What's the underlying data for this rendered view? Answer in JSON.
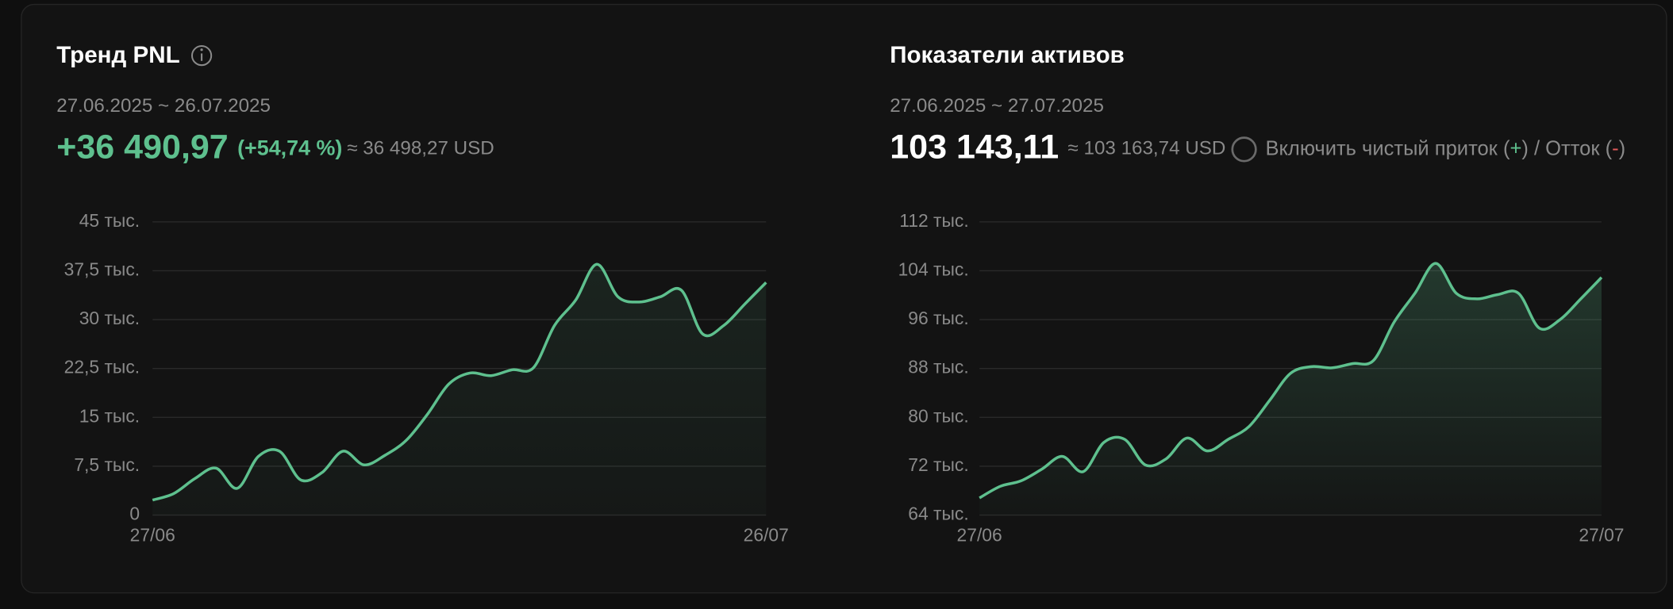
{
  "chart_data": [
    {
      "type": "area",
      "title": "Тренд PNL",
      "subtitle": "27.06.2025 ~ 26.07.2025",
      "headline": "+36 490,97",
      "change": "(+54,74 %)",
      "converted": "≈ 36 498,27 USD",
      "color": "#5ec08e",
      "categories": [
        "27/06",
        null,
        null,
        null,
        null,
        null,
        null,
        null,
        null,
        null,
        null,
        null,
        null,
        null,
        null,
        null,
        null,
        null,
        null,
        null,
        null,
        null,
        null,
        null,
        null,
        null,
        null,
        null,
        null,
        "26/07"
      ],
      "values": [
        2300,
        3300,
        5600,
        7200,
        4100,
        9000,
        9800,
        5400,
        6500,
        9800,
        7700,
        9200,
        11500,
        15500,
        20100,
        21800,
        21400,
        22300,
        22600,
        29100,
        33000,
        38500,
        33500,
        32700,
        33500,
        34500,
        27800,
        29100,
        32400,
        35700
      ],
      "ylim": [
        0,
        45000
      ],
      "yticks": [
        0,
        {
          "value": 7500,
          "label": "7,5 тыс."
        },
        {
          "value": 15000,
          "label": "15 тыс."
        },
        {
          "value": 22500,
          "label": "22,5 тыс."
        },
        {
          "value": 30000,
          "label": "30 тыс."
        },
        {
          "value": 37500,
          "label": "37,5 тыс."
        },
        {
          "value": 45000,
          "label": "45 тыс."
        }
      ],
      "grid": true
    },
    {
      "type": "area",
      "title": "Показатели активов",
      "subtitle": "27.06.2025 ~ 27.07.2025",
      "headline": "103 143,11",
      "converted": "≈ 103 163,74 USD",
      "toggle": [
        "Включить чистый приток (",
        "+",
        ") / Отток (",
        "-",
        ")"
      ],
      "color": "#5ec08e",
      "categories": [
        "27/06",
        null,
        null,
        null,
        null,
        null,
        null,
        null,
        null,
        null,
        null,
        null,
        null,
        null,
        null,
        null,
        null,
        null,
        null,
        null,
        null,
        null,
        null,
        null,
        null,
        null,
        null,
        null,
        null,
        null,
        "27/07"
      ],
      "values": [
        66800,
        68700,
        69600,
        71500,
        73600,
        71100,
        75900,
        76400,
        72200,
        73200,
        76600,
        74500,
        76400,
        78500,
        82800,
        87200,
        88300,
        88100,
        88800,
        89300,
        95600,
        100300,
        105200,
        100300,
        99400,
        100100,
        100300,
        94600,
        96000,
        99400,
        102900
      ],
      "ylim": [
        64000,
        112000
      ],
      "yticks": [
        {
          "value": 64000,
          "label": "64 тыс."
        },
        {
          "value": 72000,
          "label": "72 тыс."
        },
        {
          "value": 80000,
          "label": "80 тыс."
        },
        {
          "value": 88000,
          "label": "88 тыс."
        },
        {
          "value": 96000,
          "label": "96 тыс."
        },
        {
          "value": 104000,
          "label": "104 тыс."
        },
        {
          "value": 112000,
          "label": "112 тыс."
        }
      ],
      "grid": true
    }
  ]
}
